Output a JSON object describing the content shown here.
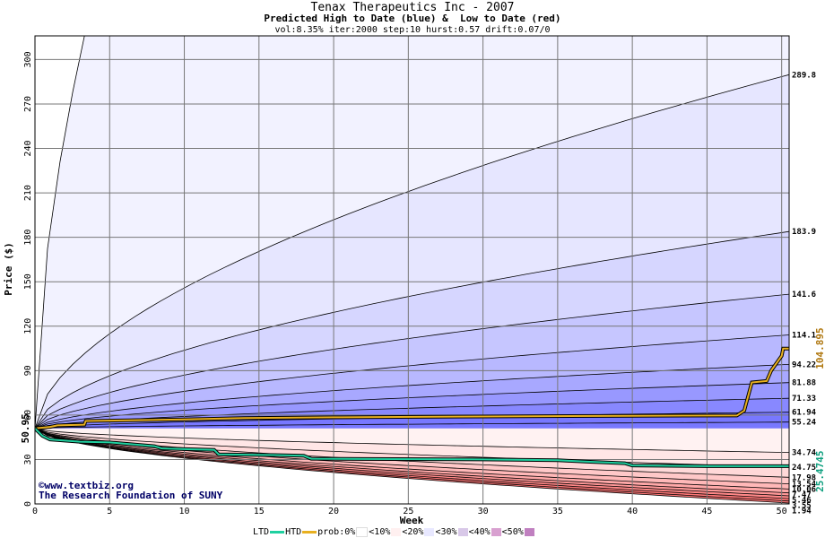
{
  "chart_data": {
    "type": "area",
    "title": "Tenax Therapeutics Inc - 2007",
    "subtitle": "Predicted High to Date (blue) &  Low to Date (red)",
    "params": "vol:8.35% iter:2000 step:10 hurst:0.57 drift:0.07/0",
    "xlabel": "Week",
    "ylabel": "Price ($)",
    "xlim": [
      0,
      50.5
    ],
    "ylim": [
      0,
      316
    ],
    "x_ticks": [
      0,
      5,
      10,
      15,
      20,
      25,
      30,
      35,
      40,
      45,
      50
    ],
    "y_ticks": [
      0,
      30,
      60,
      90,
      120,
      150,
      180,
      210,
      240,
      270,
      300
    ],
    "grid": true,
    "start_price": 50.95,
    "start_label": "50.95",
    "high_percentile_levels": [
      {
        "label": "289.8",
        "value": 289.8
      },
      {
        "label": "183.9",
        "value": 183.9
      },
      {
        "label": "141.6",
        "value": 141.6
      },
      {
        "label": "114.1",
        "value": 114.1
      },
      {
        "label": "94.22",
        "value": 94.22
      },
      {
        "label": "81.88",
        "value": 81.88
      },
      {
        "label": "71.33",
        "value": 71.33
      },
      {
        "label": "61.94",
        "value": 61.94
      },
      {
        "label": "55.24",
        "value": 55.24
      }
    ],
    "low_percentile_levels": [
      {
        "label": "34.74",
        "value": 34.74
      },
      {
        "label": "24.75",
        "value": 24.75
      },
      {
        "label": "17.98",
        "value": 17.98
      },
      {
        "label": "13.54",
        "value": 13.54
      },
      {
        "label": "10.06",
        "value": 10.06
      },
      {
        "label": "7.47",
        "value": 7.47
      },
      {
        "label": "5.46",
        "value": 5.46
      },
      {
        "label": "3.55",
        "value": 3.55
      },
      {
        "label": "1.94",
        "value": 1.94
      }
    ],
    "htd_series": {
      "name": "HTD",
      "final_label": "104.895",
      "color": "#e8b020",
      "points": [
        [
          0,
          50.95
        ],
        [
          1,
          52
        ],
        [
          1.5,
          53
        ],
        [
          3.3,
          53.5
        ],
        [
          3.4,
          56
        ],
        [
          10,
          57
        ],
        [
          14,
          58
        ],
        [
          20,
          58.5
        ],
        [
          30,
          59
        ],
        [
          40,
          59.5
        ],
        [
          47,
          59.7
        ],
        [
          47.5,
          63
        ],
        [
          48,
          82
        ],
        [
          49,
          83
        ],
        [
          49.3,
          90
        ],
        [
          50,
          100
        ],
        [
          50.1,
          104.9
        ],
        [
          50.5,
          104.9
        ]
      ]
    },
    "ltd_series": {
      "name": "LTD",
      "final_label": "25.4745",
      "color": "#20d0a0",
      "points": [
        [
          0,
          50.95
        ],
        [
          0.5,
          46
        ],
        [
          1,
          43.5
        ],
        [
          3,
          42
        ],
        [
          5,
          41.5
        ],
        [
          8,
          39
        ],
        [
          8.5,
          37.5
        ],
        [
          10,
          37
        ],
        [
          12,
          36.5
        ],
        [
          12.3,
          33.5
        ],
        [
          16,
          33
        ],
        [
          18,
          32.5
        ],
        [
          18.5,
          30.5
        ],
        [
          22,
          30.3
        ],
        [
          30,
          30
        ],
        [
          35,
          29.5
        ],
        [
          37,
          28.5
        ],
        [
          39.5,
          27.5
        ],
        [
          40,
          26
        ],
        [
          45,
          25.5
        ],
        [
          50.5,
          25.47
        ]
      ]
    },
    "legend": {
      "ltd": "LTD",
      "htd": "HTD",
      "prob": "prob:0%",
      "bins": [
        "<10%",
        "<20%",
        "<30%",
        "<40%",
        "<50%"
      ]
    },
    "credits": [
      "©www.textbiz.org",
      "The Research Foundation of SUNY"
    ]
  },
  "colors": {
    "high_bands": [
      "#f2f2ff",
      "#e6e6ff",
      "#d6d6ff",
      "#c6c6ff",
      "#b8b8ff",
      "#a8a8ff",
      "#9898ff",
      "#8888ff",
      "#7878ff"
    ],
    "low_bands": [
      "#fff2f2",
      "#ffe6e6",
      "#ffd8d8",
      "#ffc8c8",
      "#ffb8b8",
      "#ffa8a8",
      "#ff9898",
      "#ff8888",
      "#ff7878"
    ],
    "legend_swatches": [
      "#ffffff",
      "#fff0f0",
      "#e8e8ff",
      "#d8c8e8",
      "#d8a0d0",
      "#c080c0"
    ],
    "grid": "#777777"
  }
}
